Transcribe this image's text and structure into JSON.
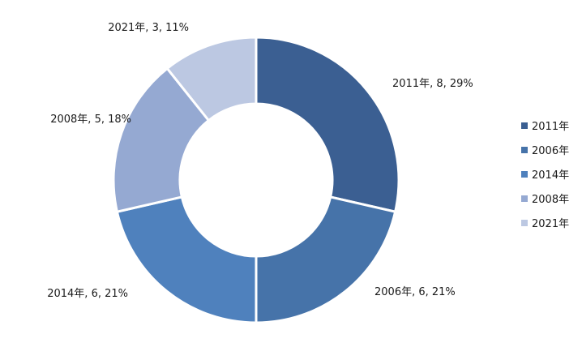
{
  "chart_data": {
    "type": "pie",
    "variant": "donut",
    "title": "",
    "categories": [
      "2011年",
      "2006年",
      "2014年",
      "2008年",
      "2021年"
    ],
    "values": [
      8,
      6,
      6,
      5,
      3
    ],
    "percents": [
      "29%",
      "21%",
      "21%",
      "18%",
      "11%"
    ],
    "data_labels": [
      "2011年, 8, 29%",
      "2006年, 6, 21%",
      "2014年, 6, 21%",
      "2008年, 5, 18%",
      "2021年, 3, 11%"
    ],
    "colors": [
      "#3b5f92",
      "#4673a9",
      "#4f81bd",
      "#95a9d2",
      "#bcc8e2"
    ],
    "legend": {
      "position": "right",
      "entries": [
        "2011年",
        "2006年",
        "2014年",
        "2008年",
        "2021年"
      ]
    }
  }
}
